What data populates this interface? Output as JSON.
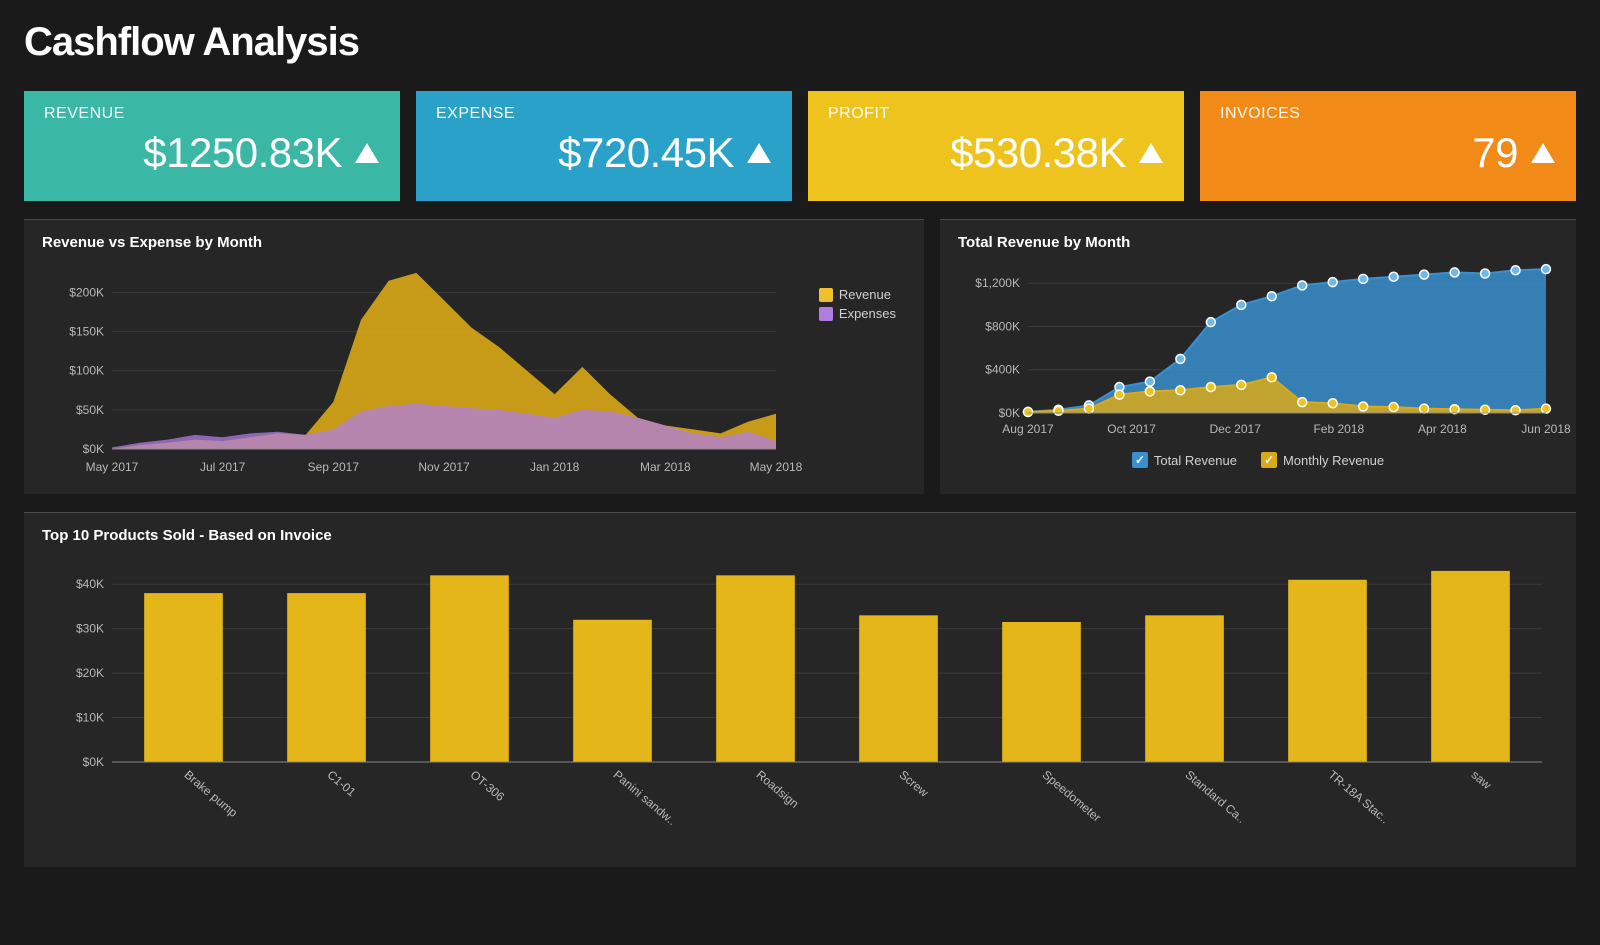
{
  "page": {
    "title": "Cashflow Analysis"
  },
  "colors": {
    "page_bg": "#1a1a1a",
    "panel_bg": "#262626",
    "panel_border_top": "#4a4a4a",
    "text": "#e0e0e0",
    "axis_text": "#b8b8b8",
    "grid": "#3a3a3a",
    "axis_line": "#888888"
  },
  "kpi": {
    "cards": [
      {
        "key": "revenue",
        "label": "REVENUE",
        "value": "$1250.83K",
        "bg": "#3ab7a5",
        "trend": "up"
      },
      {
        "key": "expense",
        "label": "EXPENSE",
        "value": "$720.45K",
        "bg": "#2aa1c9",
        "trend": "up"
      },
      {
        "key": "profit",
        "label": "PROFIT",
        "value": "$530.38K",
        "bg": "#efc31d",
        "trend": "up"
      },
      {
        "key": "invoices",
        "label": "INVOICES",
        "value": "79",
        "bg": "#f18a17",
        "trend": "up"
      }
    ],
    "value_fontsize": 42,
    "label_fontsize": 16,
    "arrow_color": "#ffffff"
  },
  "rev_exp_chart": {
    "title": "Revenue vs Expense by Month",
    "type": "area",
    "x_labels": [
      "May 2017",
      "Jul 2017",
      "Sep 2017",
      "Nov 2017",
      "Jan 2018",
      "Mar 2018",
      "May 2018"
    ],
    "y_ticks": [
      0,
      50,
      100,
      150,
      200
    ],
    "y_tick_labels": [
      "$0K",
      "$50K",
      "$100K",
      "$150K",
      "$200K"
    ],
    "ylim": [
      0,
      230
    ],
    "series": [
      {
        "name": "Revenue",
        "color": "#d9a917",
        "fill_opacity": 0.9,
        "values": [
          0,
          5,
          8,
          12,
          10,
          15,
          20,
          18,
          60,
          165,
          215,
          225,
          190,
          155,
          130,
          100,
          70,
          105,
          70,
          40,
          30,
          25,
          20,
          35,
          45
        ]
      },
      {
        "name": "Expenses",
        "color": "#b07de0",
        "fill_opacity": 0.75,
        "values": [
          2,
          8,
          12,
          18,
          15,
          20,
          22,
          18,
          25,
          48,
          55,
          58,
          55,
          52,
          50,
          45,
          40,
          50,
          48,
          40,
          30,
          20,
          15,
          22,
          10
        ]
      }
    ],
    "legend": {
      "position": "right-inside",
      "items": [
        {
          "label": "Revenue",
          "swatch": "#efbf2c"
        },
        {
          "label": "Expenses",
          "swatch": "#b07de0"
        }
      ]
    }
  },
  "total_rev_chart": {
    "title": "Total Revenue by Month",
    "type": "area-with-markers",
    "x_labels": [
      "Aug 2017",
      "Oct 2017",
      "Dec 2017",
      "Feb 2018",
      "Apr 2018",
      "Jun 2018"
    ],
    "y_ticks": [
      0,
      400,
      800,
      1200
    ],
    "y_tick_labels": [
      "$0K",
      "$400K",
      "$800K",
      "$1,200K"
    ],
    "ylim": [
      0,
      1350
    ],
    "series": [
      {
        "name": "Total Revenue",
        "color": "#3a8fcf",
        "marker_color": "#6fb9e8",
        "marker_outline": "#ffffff",
        "fill_opacity": 0.85,
        "values": [
          10,
          30,
          70,
          240,
          290,
          500,
          840,
          1000,
          1080,
          1180,
          1210,
          1240,
          1260,
          1280,
          1300,
          1290,
          1320,
          1330
        ]
      },
      {
        "name": "Monthly Revenue",
        "color": "#d9a917",
        "marker_color": "#efc31d",
        "marker_outline": "#ffffff",
        "fill_opacity": 0.85,
        "values": [
          10,
          20,
          40,
          170,
          200,
          210,
          240,
          260,
          330,
          100,
          90,
          60,
          55,
          40,
          35,
          30,
          25,
          40
        ]
      }
    ],
    "legend": {
      "position": "bottom-center",
      "items": [
        {
          "label": "Total Revenue",
          "swatch": "#3a8fcf"
        },
        {
          "label": "Monthly Revenue",
          "swatch": "#d9a917"
        }
      ]
    }
  },
  "top_products_chart": {
    "title": "Top 10 Products Sold - Based on Invoice",
    "type": "bar",
    "bar_color": "#e5b61a",
    "y_ticks": [
      0,
      10,
      20,
      30,
      40
    ],
    "y_tick_labels": [
      "$0K",
      "$10K",
      "$20K",
      "$30K",
      "$40K"
    ],
    "ylim": [
      0,
      45
    ],
    "bar_width": 0.55,
    "categories": [
      "Brake pump",
      "C1-01",
      "OT-306",
      "Panini sandw..",
      "Roadsign",
      "Screw",
      "Speedometer",
      "Standard Ca..",
      "TR-18A Stac..",
      "saw"
    ],
    "values": [
      38,
      38,
      42,
      32,
      42,
      33,
      31.5,
      33,
      41,
      43
    ],
    "label_rotation_deg": 40
  }
}
